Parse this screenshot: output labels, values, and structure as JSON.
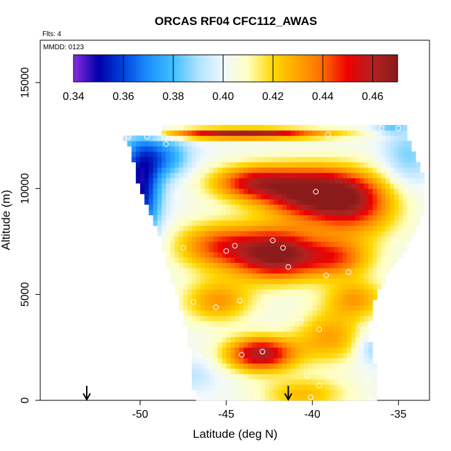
{
  "chart_data": {
    "type": "heatmap",
    "title": "ORCAS RF04 CFC112_AWAS",
    "flights_note": "Flts: 4",
    "date_note": "MMDD: 0123",
    "xlabel": "Latitude (deg N)",
    "ylabel": "Altitude (m)",
    "xlim": [
      -55.8,
      -33.2
    ],
    "ylim": [
      0,
      17000
    ],
    "x_ticks": [
      -50,
      -45,
      -40,
      -35
    ],
    "x_tick_labels": [
      "-50",
      "-45",
      "-40",
      "-35"
    ],
    "y_ticks": [
      0,
      5000,
      10000,
      15000
    ],
    "y_tick_labels": [
      "0",
      "5000",
      "10000",
      "15000"
    ],
    "colorbar": {
      "min": 0.34,
      "max": 0.47,
      "ticks": [
        0.34,
        0.36,
        0.38,
        0.4,
        0.42,
        0.44,
        0.46
      ],
      "tick_labels": [
        "0.34",
        "0.36",
        "0.38",
        "0.40",
        "0.42",
        "0.44",
        "0.46"
      ],
      "colors": [
        "#8b2be2",
        "#0000a8",
        "#0044dd",
        "#1e90ff",
        "#3fbfff",
        "#b0e2ff",
        "#f0f8ff",
        "#ffffc0",
        "#ffd700",
        "#ffa500",
        "#ff6a00",
        "#ee0000",
        "#b22222",
        "#8b1a1a"
      ]
    },
    "envelope": {
      "left": [
        [
          0,
          -46.8
        ],
        [
          1500,
          -47.0
        ],
        [
          3000,
          -47.2
        ],
        [
          4500,
          -47.7
        ],
        [
          6000,
          -48.3
        ],
        [
          7500,
          -48.8
        ],
        [
          9000,
          -49.5
        ],
        [
          10500,
          -50.2
        ],
        [
          12000,
          -50.6
        ],
        [
          12400,
          -50.9
        ],
        [
          12600,
          -48.7
        ],
        [
          13000,
          -48.7
        ]
      ],
      "right": [
        [
          0,
          -36.3
        ],
        [
          1500,
          -36.4
        ],
        [
          3000,
          -36.8
        ],
        [
          4500,
          -36.7
        ],
        [
          6000,
          -35.7
        ],
        [
          7500,
          -34.4
        ],
        [
          9000,
          -33.6
        ],
        [
          10500,
          -33.6
        ],
        [
          12000,
          -34.4
        ],
        [
          12600,
          -34.6
        ],
        [
          13000,
          -34.6
        ]
      ]
    },
    "field_centers": [
      {
        "lat": -39.8,
        "alt": 9800,
        "value": 0.47,
        "sx": 3.2,
        "sy": 1200
      },
      {
        "lat": -43.5,
        "alt": 10300,
        "value": 0.445,
        "sx": 2.5,
        "sy": 800
      },
      {
        "lat": -37.5,
        "alt": 9000,
        "value": 0.435,
        "sx": 2.5,
        "sy": 1500
      },
      {
        "lat": -42.0,
        "alt": 6900,
        "value": 0.468,
        "sx": 2.5,
        "sy": 1200
      },
      {
        "lat": -45.5,
        "alt": 7300,
        "value": 0.44,
        "sx": 2.5,
        "sy": 1100
      },
      {
        "lat": -38.5,
        "alt": 6700,
        "value": 0.435,
        "sx": 2.0,
        "sy": 900
      },
      {
        "lat": -45.5,
        "alt": 4700,
        "value": 0.432,
        "sx": 2.0,
        "sy": 1000
      },
      {
        "lat": -37.5,
        "alt": 4800,
        "value": 0.43,
        "sx": 1.8,
        "sy": 900
      },
      {
        "lat": -43.0,
        "alt": 2200,
        "value": 0.462,
        "sx": 2.0,
        "sy": 800
      },
      {
        "lat": -39.0,
        "alt": 3000,
        "value": 0.43,
        "sx": 2.0,
        "sy": 1200
      },
      {
        "lat": -40.5,
        "alt": 300,
        "value": 0.425,
        "sx": 2.5,
        "sy": 800
      },
      {
        "lat": -44.0,
        "alt": 12600,
        "value": 0.465,
        "sx": 5.0,
        "sy": 250
      },
      {
        "lat": -50.0,
        "alt": 10000,
        "value": 0.35,
        "sx": 1.2,
        "sy": 2500
      },
      {
        "lat": -48.5,
        "alt": 11500,
        "value": 0.375,
        "sx": 1.5,
        "sy": 1000
      },
      {
        "lat": -34.5,
        "alt": 11500,
        "value": 0.385,
        "sx": 1.5,
        "sy": 1500
      },
      {
        "lat": -36.5,
        "alt": 2500,
        "value": 0.385,
        "sx": 1.0,
        "sy": 800
      },
      {
        "lat": -35.5,
        "alt": 12800,
        "value": 0.385,
        "sx": 1.0,
        "sy": 200
      },
      {
        "lat": -47.0,
        "alt": 1200,
        "value": 0.392,
        "sx": 1.5,
        "sy": 800
      }
    ],
    "base_value": 0.402,
    "samples": [
      {
        "lat": -50.7,
        "alt": 12450
      },
      {
        "lat": -48.6,
        "alt": 12450
      },
      {
        "lat": -48.5,
        "alt": 12100
      },
      {
        "lat": -39.1,
        "alt": 12550
      },
      {
        "lat": -37.2,
        "alt": 12850
      },
      {
        "lat": -36.0,
        "alt": 12850
      },
      {
        "lat": -35.0,
        "alt": 12850
      },
      {
        "lat": -33.6,
        "alt": 10050
      },
      {
        "lat": -33.6,
        "alt": 8100
      },
      {
        "lat": -34.1,
        "alt": 7750
      },
      {
        "lat": -35.2,
        "alt": 7550
      },
      {
        "lat": -47.9,
        "alt": 9650
      },
      {
        "lat": -39.8,
        "alt": 9850
      },
      {
        "lat": -42.3,
        "alt": 7550
      },
      {
        "lat": -41.7,
        "alt": 7200
      },
      {
        "lat": -44.5,
        "alt": 7300
      },
      {
        "lat": -45.0,
        "alt": 7050
      },
      {
        "lat": -47.5,
        "alt": 7200
      },
      {
        "lat": -41.4,
        "alt": 6300
      },
      {
        "lat": -39.2,
        "alt": 5900
      },
      {
        "lat": -37.9,
        "alt": 6050
      },
      {
        "lat": -35.7,
        "alt": 4950
      },
      {
        "lat": -42.8,
        "alt": 4900
      },
      {
        "lat": -44.2,
        "alt": 4700
      },
      {
        "lat": -46.9,
        "alt": 4650
      },
      {
        "lat": -45.6,
        "alt": 4400
      },
      {
        "lat": -40.7,
        "alt": 3750
      },
      {
        "lat": -39.6,
        "alt": 3350
      },
      {
        "lat": -37.2,
        "alt": 3500
      },
      {
        "lat": -42.9,
        "alt": 2300
      },
      {
        "lat": -44.1,
        "alt": 2150
      },
      {
        "lat": -46.6,
        "alt": 2100
      },
      {
        "lat": -46.0,
        "alt": 1850
      },
      {
        "lat": -40.3,
        "alt": 1150
      },
      {
        "lat": -39.6,
        "alt": 700
      },
      {
        "lat": -36.8,
        "alt": 850
      },
      {
        "lat": -43.2,
        "alt": 300
      },
      {
        "lat": -40.1,
        "alt": 150
      },
      {
        "lat": -36.6,
        "alt": 150
      },
      {
        "lat": -46.5,
        "alt": 150
      },
      {
        "lat": -49.6,
        "alt": 12450
      }
    ],
    "arrows": [
      {
        "lat": -53.1
      },
      {
        "lat": -41.4
      }
    ],
    "grid": false,
    "legend": "colorbar-top"
  }
}
